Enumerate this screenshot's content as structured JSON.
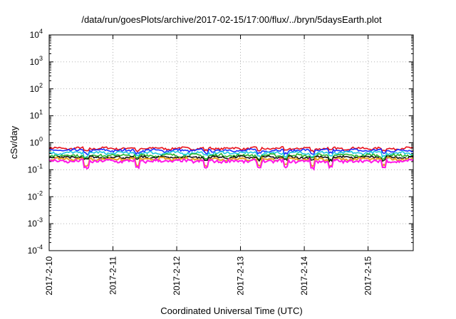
{
  "chart_data": {
    "type": "line",
    "title": "/data/run/goesPlots/archive/2017-02-15/17:00/flux/../bryn/5daysEarth.plot",
    "xlabel": "Coordinated Universal Time (UTC)",
    "ylabel": "cSv/day",
    "y_scale": "log",
    "ylim": [
      0.0001,
      10000
    ],
    "y_ticks": [
      {
        "mant": "10",
        "exp": "4",
        "value": 10000
      },
      {
        "mant": "10",
        "exp": "3",
        "value": 1000
      },
      {
        "mant": "10",
        "exp": "2",
        "value": 100
      },
      {
        "mant": "10",
        "exp": "1",
        "value": 10
      },
      {
        "mant": "10",
        "exp": "0",
        "value": 1
      },
      {
        "mant": "10",
        "exp": "-1",
        "value": 0.1
      },
      {
        "mant": "10",
        "exp": "-2",
        "value": 0.01
      },
      {
        "mant": "10",
        "exp": "-3",
        "value": 0.001
      },
      {
        "mant": "10",
        "exp": "-4",
        "value": 0.0001
      }
    ],
    "x_ticks": [
      "2017-2-10",
      "2017-2-11",
      "2017-2-12",
      "2017-2-13",
      "2017-2-14",
      "2017-2-15"
    ],
    "xlim": [
      "2017-2-10",
      "2017-2-15 17:00"
    ],
    "grid": true,
    "series": [
      {
        "color": "#e8101a",
        "level": 0.62,
        "jitter": 0.06
      },
      {
        "color": "#1a2cff",
        "level": 0.52,
        "jitter": 0.06
      },
      {
        "color": "#1ec8e0",
        "level": 0.42,
        "jitter": 0.05
      },
      {
        "color": "#2bb52b",
        "level": 0.34,
        "jitter": 0.04
      },
      {
        "color": "#111111",
        "level": 0.29,
        "jitter": 0.03
      },
      {
        "color": "#e8a020",
        "level": 0.25,
        "jitter": 0.03
      },
      {
        "color": "#ff18e8",
        "level": 0.21,
        "jitter": 0.03
      }
    ],
    "dips": [
      "2017-2-10 14:00",
      "2017-2-11 09:00",
      "2017-2-12 11:00",
      "2017-2-13 07:00",
      "2017-2-13 17:00",
      "2017-2-14 03:00",
      "2017-2-14 10:00",
      "2017-2-15 06:00"
    ]
  }
}
